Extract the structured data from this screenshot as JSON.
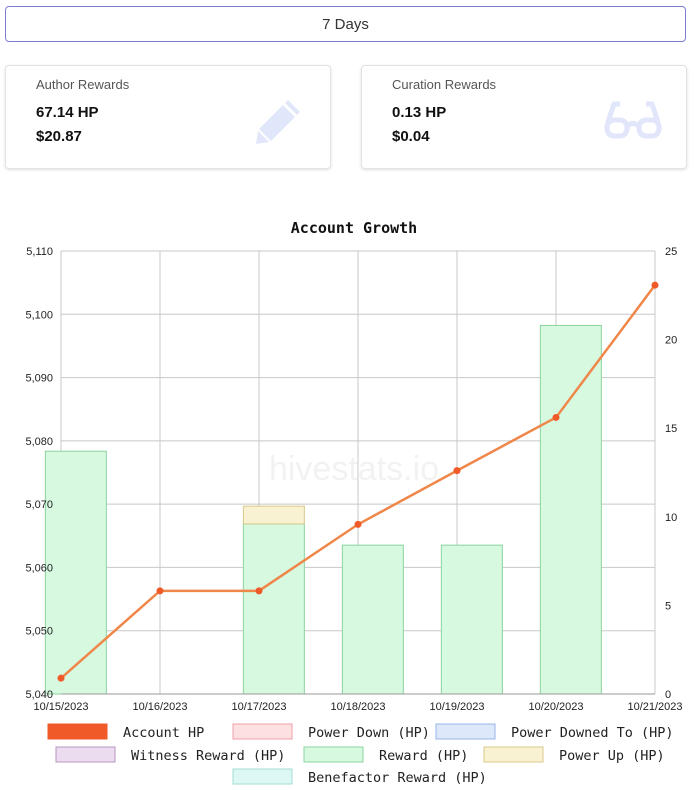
{
  "period": {
    "label": "7 Days"
  },
  "author": {
    "title": "Author Rewards",
    "hp": "67.14 HP",
    "usd": "$20.87",
    "icon": "pencil-icon"
  },
  "curation": {
    "title": "Curation Rewards",
    "hp": "0.13 HP",
    "usd": "$0.04",
    "icon": "glasses-icon"
  },
  "watermark": "hivestats.io",
  "colors": {
    "account_hp": "#f0874a",
    "account_hp_point": "#f05a28",
    "reward_fill": "#d6f9e0",
    "reward_stroke": "#8bd4a0",
    "power_up_fill": "#f8f2d2",
    "power_up_stroke": "#d8c98a"
  },
  "chart_data": {
    "type": "bar",
    "title": "Account Growth",
    "x_labels": [
      "10/15/2023",
      "10/16/2023",
      "10/17/2023",
      "10/18/2023",
      "10/19/2023",
      "10/20/2023",
      "10/21/2023"
    ],
    "y_left": {
      "min": 5040,
      "max": 5110,
      "ticks": [
        "5,040",
        "5,050",
        "5,060",
        "5,070",
        "5,080",
        "5,090",
        "5,100",
        "5,110"
      ]
    },
    "y_right": {
      "min": 0,
      "max": 25,
      "ticks": [
        "0",
        "5",
        "10",
        "15",
        "20",
        "25"
      ]
    },
    "line_series": {
      "name": "Account HP",
      "axis": "left",
      "x": [
        "10/15/2023",
        "10/16/2023",
        "10/17/2023",
        "10/18/2023",
        "10/19/2023",
        "10/20/2023",
        "10/21/2023"
      ],
      "values": [
        5042.5,
        5056.3,
        5056.3,
        5066.8,
        5075.3,
        5083.7,
        5104.6
      ]
    },
    "bar_series": [
      {
        "name": "Reward (HP)",
        "axis": "right",
        "stack": [
          {
            "day": "10/15/2023",
            "value": 13.7
          },
          {
            "day": "10/17/2023",
            "value": 9.6
          },
          {
            "day": "10/18/2023",
            "value": 8.4
          },
          {
            "day": "10/19/2023",
            "value": 8.4
          },
          {
            "day": "10/20/2023",
            "value": 20.8
          }
        ]
      },
      {
        "name": "Power Up (HP)",
        "axis": "right",
        "stack": [
          {
            "day": "10/17/2023",
            "value": 1.0
          }
        ]
      }
    ],
    "legend": [
      {
        "label": "Account HP",
        "fill": "#f05a28",
        "stroke": "#f05a28"
      },
      {
        "label": "Power Down (HP)",
        "fill": "#fde0e2",
        "stroke": "#eea0a8"
      },
      {
        "label": "Power Downed To (HP)",
        "fill": "#dde8fb",
        "stroke": "#98b4e8"
      },
      {
        "label": "Witness Reward (HP)",
        "fill": "#ecdcef",
        "stroke": "#b896c0"
      },
      {
        "label": "Reward (HP)",
        "fill": "#d6f9e0",
        "stroke": "#8bd4a0"
      },
      {
        "label": "Power Up (HP)",
        "fill": "#f8f2d2",
        "stroke": "#d8c98a"
      },
      {
        "label": "Benefactor Reward (HP)",
        "fill": "#dcf7f4",
        "stroke": "#a3dcd6"
      }
    ],
    "legend_position": "bottom",
    "grid": true
  }
}
